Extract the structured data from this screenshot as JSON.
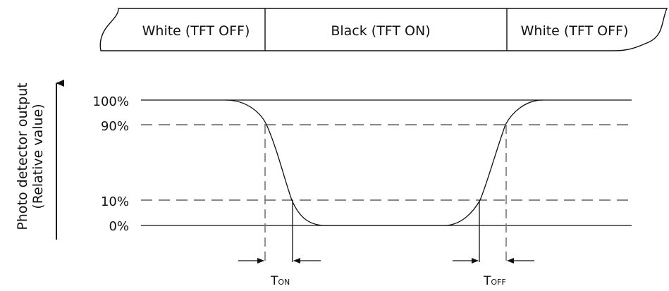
{
  "header_band": {
    "left": "White (TFT OFF)",
    "middle": "Black (TFT ON)",
    "right": "White (TFT OFF)"
  },
  "levels": {
    "p100": "100%",
    "p90": "90%",
    "p10": "10%",
    "p0": "0%"
  },
  "y_axis": {
    "line1": "Photo detector output",
    "line2": "(Relative value)"
  },
  "timing": {
    "ton_main": "T",
    "ton_sub": "ON",
    "toff_main": "T",
    "toff_sub": "OFF"
  }
}
